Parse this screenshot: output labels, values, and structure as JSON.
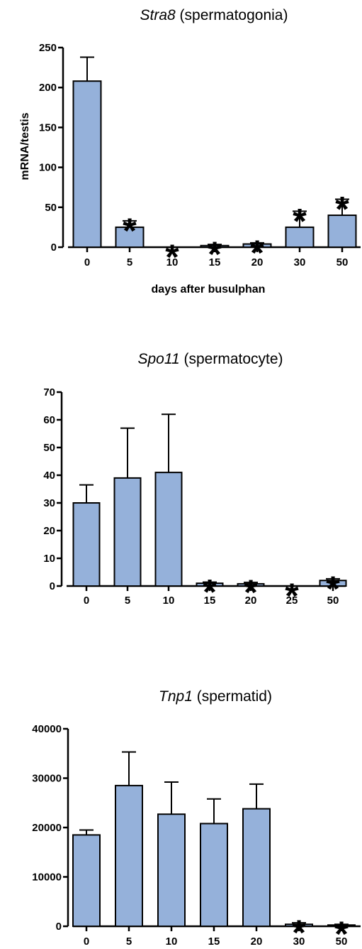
{
  "chart_data": [
    {
      "type": "bar",
      "title_gene": "Stra8",
      "title_rest": " (spermatogonia)",
      "xlabel": "days after busulphan",
      "ylabel": "mRNA/testis",
      "categories": [
        "0",
        "5",
        "10",
        "15",
        "20",
        "30",
        "50"
      ],
      "values": [
        208,
        25,
        0,
        2,
        4,
        25,
        40
      ],
      "errors": [
        30,
        8,
        0,
        1.5,
        1.5,
        20,
        20
      ],
      "significant": [
        false,
        true,
        true,
        true,
        true,
        true,
        true
      ],
      "marker": "*",
      "ylim": [
        0,
        250
      ],
      "yticks": [
        "0",
        "50",
        "100",
        "150",
        "200",
        "250"
      ],
      "bar_color": "#95B1DA"
    },
    {
      "type": "bar",
      "title_gene": "Spo11",
      "title_rest": " (spermatocyte)",
      "xlabel": "",
      "ylabel": "",
      "categories": [
        "0",
        "5",
        "10",
        "15",
        "20",
        "25",
        "50"
      ],
      "values": [
        30,
        39,
        41,
        1,
        0.8,
        0,
        2
      ],
      "errors": [
        6.5,
        18,
        21,
        0.4,
        0.5,
        0,
        0.6
      ],
      "significant": [
        false,
        false,
        false,
        true,
        true,
        true,
        true
      ],
      "marker": "*",
      "ylim": [
        0,
        70
      ],
      "yticks": [
        "0",
        "10",
        "20",
        "30",
        "40",
        "50",
        "60",
        "70"
      ],
      "bar_color": "#95B1DA"
    },
    {
      "type": "bar",
      "title_gene": "Tnp1",
      "title_rest": " (spermatid)",
      "xlabel": "",
      "ylabel": "",
      "categories": [
        "0",
        "5",
        "10",
        "15",
        "20",
        "30",
        "50"
      ],
      "values": [
        18500,
        28500,
        22700,
        20800,
        23800,
        400,
        250
      ],
      "errors": [
        1000,
        6800,
        6500,
        5000,
        5000,
        300,
        150
      ],
      "significant": [
        false,
        false,
        false,
        false,
        false,
        true,
        true
      ],
      "marker": "*",
      "ylim": [
        0,
        40000
      ],
      "yticks": [
        "0",
        "10000",
        "20000",
        "30000",
        "40000"
      ],
      "bar_color": "#95B1DA"
    }
  ]
}
